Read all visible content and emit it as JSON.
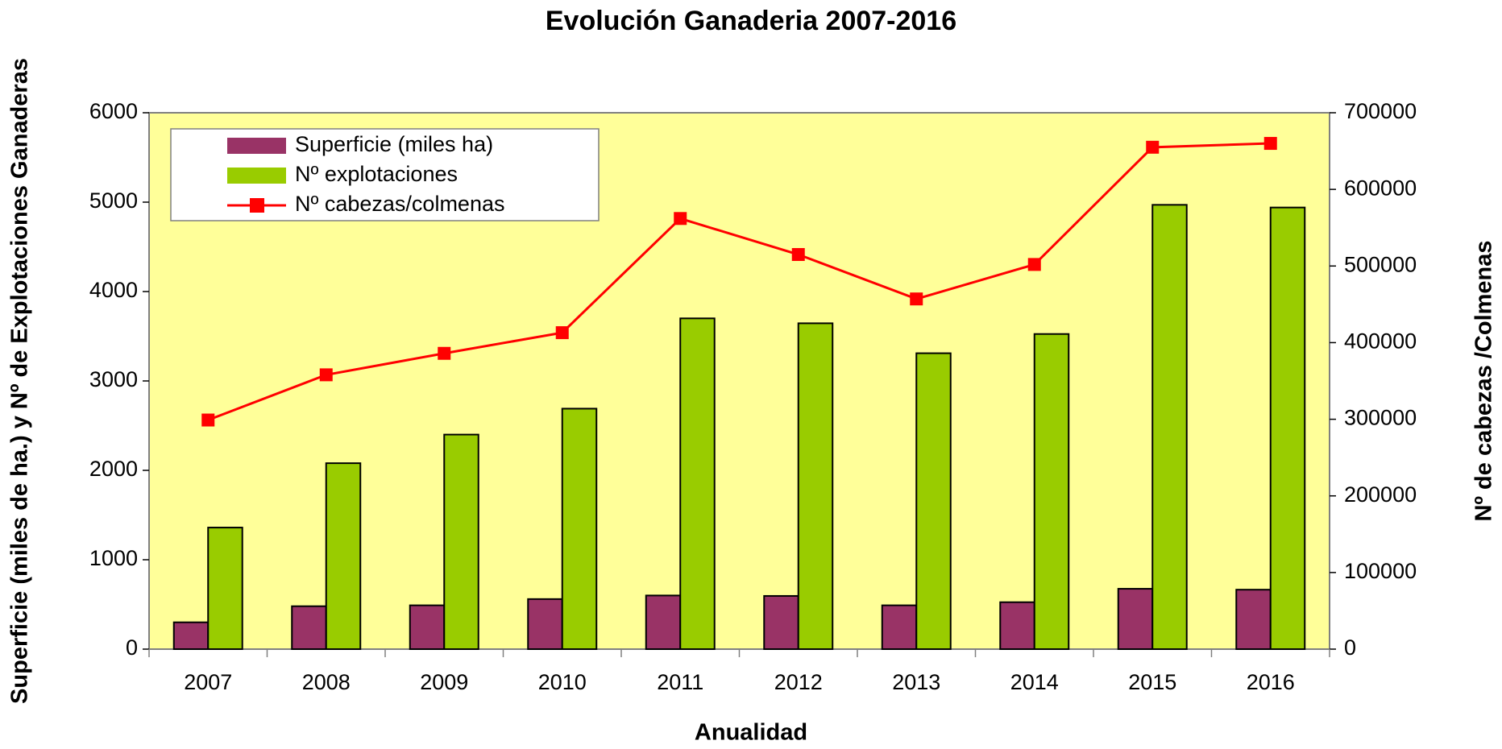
{
  "chart_data": {
    "type": "bar_line",
    "title": "Evolución Ganaderia 2007-2016",
    "x_label": "Anualidad",
    "y_label": "Superficie (miles de ha.) y Nº de Explotaciones Ganaderas",
    "y2_label": "Nº de cabezas /Colmenas",
    "categories": [
      "2007",
      "2008",
      "2009",
      "2010",
      "2011",
      "2012",
      "2013",
      "2014",
      "2015",
      "2016"
    ],
    "series": [
      {
        "name": "Superficie (miles ha)",
        "color": "#993366",
        "kind": "bar",
        "values": [
          300,
          480,
          490,
          560,
          600,
          595,
          490,
          525,
          675,
          665
        ]
      },
      {
        "name": "Nº explotaciones",
        "color": "#99cc00",
        "kind": "bar",
        "values": [
          1360,
          2080,
          2400,
          2690,
          3700,
          3645,
          3310,
          3525,
          4970,
          4940
        ]
      },
      {
        "name": "Nº cabezas/colmenas",
        "color": "#ff0000",
        "kind": "line",
        "axis": "y2",
        "values": [
          299000,
          358000,
          386000,
          413000,
          562000,
          515000,
          457000,
          502000,
          655000,
          660000
        ]
      }
    ],
    "ylim": [
      0,
      6000
    ],
    "yticks": [
      0,
      1000,
      2000,
      3000,
      4000,
      5000,
      6000
    ],
    "y2lim": [
      0,
      700000
    ],
    "y2ticks": [
      0,
      100000,
      200000,
      300000,
      400000,
      500000,
      600000,
      700000
    ],
    "grid": false,
    "legend": "upper left",
    "plot_background": "#ffff99"
  }
}
